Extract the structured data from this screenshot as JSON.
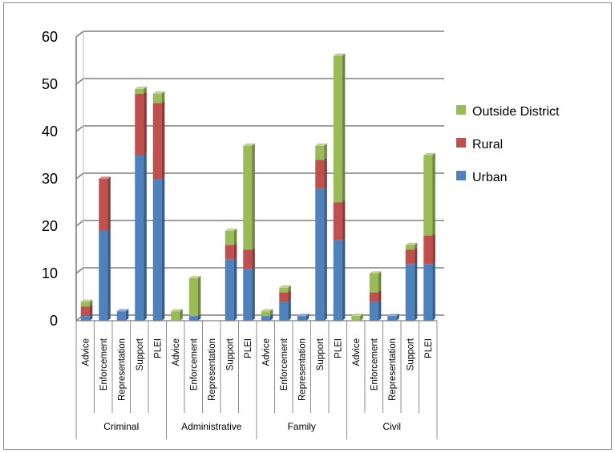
{
  "chart_data": {
    "type": "bar",
    "stacked": true,
    "three_d": true,
    "grid": true,
    "legend_position": "right",
    "ylim": [
      0,
      60
    ],
    "yticks": [
      "0",
      "10",
      "20",
      "30",
      "40",
      "50",
      "60"
    ],
    "groups": [
      {
        "name": "Criminal",
        "categories": [
          "Advice",
          "Enforcement",
          "Representation",
          "Support",
          "PLEI"
        ]
      },
      {
        "name": "Administrative",
        "categories": [
          "Advice",
          "Enforcement",
          "Representation",
          "Support",
          "PLEI"
        ]
      },
      {
        "name": "Family",
        "categories": [
          "Advice",
          "Enforcement",
          "Representation",
          "Support",
          "PLEI"
        ]
      },
      {
        "name": "Civil",
        "categories": [
          "Advice",
          "Enforcement",
          "Representation",
          "Support",
          "PLEI"
        ]
      }
    ],
    "series": [
      {
        "name": "Urban",
        "color": "#4f81bd",
        "values": [
          1,
          19,
          2,
          35,
          30,
          0,
          1,
          0,
          13,
          11,
          1,
          4,
          1,
          28,
          17,
          0,
          4,
          1,
          12,
          12
        ]
      },
      {
        "name": "Rural",
        "color": "#c0504d",
        "values": [
          2,
          11,
          0,
          13,
          16,
          0,
          0,
          0,
          3,
          4,
          0,
          2,
          0,
          6,
          8,
          0,
          2,
          0,
          3,
          6
        ]
      },
      {
        "name": "Outside District",
        "color": "#9bbb59",
        "values": [
          1,
          0,
          0,
          1,
          2,
          2,
          8,
          0,
          3,
          22,
          1,
          1,
          0,
          3,
          31,
          1,
          4,
          0,
          1,
          17
        ]
      }
    ],
    "legend_order": [
      "Outside District",
      "Rural",
      "Urban"
    ]
  }
}
